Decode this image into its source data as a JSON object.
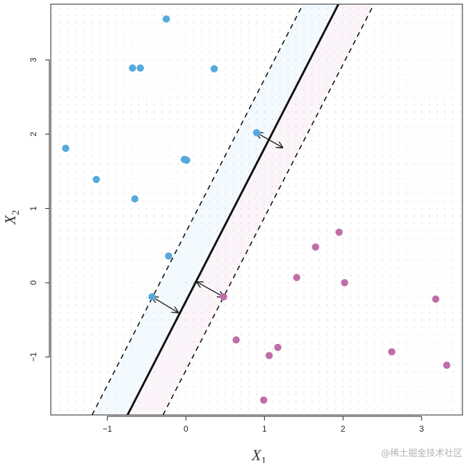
{
  "chart_data": {
    "type": "scatter",
    "title": "",
    "xlabel": "X",
    "xlabel_sub": "1",
    "ylabel": "X",
    "ylabel_sub": "2",
    "xlim": [
      -1.72,
      3.52
    ],
    "ylim": [
      -1.78,
      3.75
    ],
    "xticks": [
      -1,
      0,
      1,
      2,
      3
    ],
    "yticks": [
      -1,
      0,
      1,
      2,
      3
    ],
    "grid": "dotted point grid",
    "hyperplane": {
      "slope": 2.06,
      "intercept": -0.25
    },
    "margin_offset": 0.93,
    "series": [
      {
        "color": "#55a9dd",
        "points": [
          [
            -0.25,
            3.55
          ],
          [
            -0.68,
            2.89
          ],
          [
            -0.58,
            2.89
          ],
          [
            0.36,
            2.88
          ],
          [
            0.9,
            2.02
          ],
          [
            -1.53,
            1.81
          ],
          [
            -0.02,
            1.66
          ],
          [
            0.01,
            1.65
          ],
          [
            -1.14,
            1.39
          ],
          [
            -0.65,
            1.13
          ],
          [
            -0.22,
            0.36
          ],
          [
            -0.43,
            -0.19
          ]
        ]
      },
      {
        "color": "#c06ea8",
        "points": [
          [
            1.95,
            0.68
          ],
          [
            1.65,
            0.48
          ],
          [
            1.41,
            0.07
          ],
          [
            2.02,
            0.0
          ],
          [
            0.48,
            -0.19
          ],
          [
            3.18,
            -0.22
          ],
          [
            0.64,
            -0.77
          ],
          [
            1.17,
            -0.87
          ],
          [
            1.06,
            -0.98
          ],
          [
            2.62,
            -0.93
          ],
          [
            3.32,
            -1.11
          ],
          [
            0.99,
            -1.58
          ]
        ]
      }
    ],
    "support_arrows": [
      {
        "from": [
          0.9,
          2.02
        ],
        "to": [
          1.23,
          1.82
        ]
      },
      {
        "from": [
          -0.43,
          -0.19
        ],
        "to": [
          -0.1,
          -0.4
        ]
      },
      {
        "from": [
          0.48,
          -0.19
        ],
        "to": [
          0.14,
          0.01
        ]
      }
    ]
  },
  "watermark": "@稀土掘金技术社区"
}
